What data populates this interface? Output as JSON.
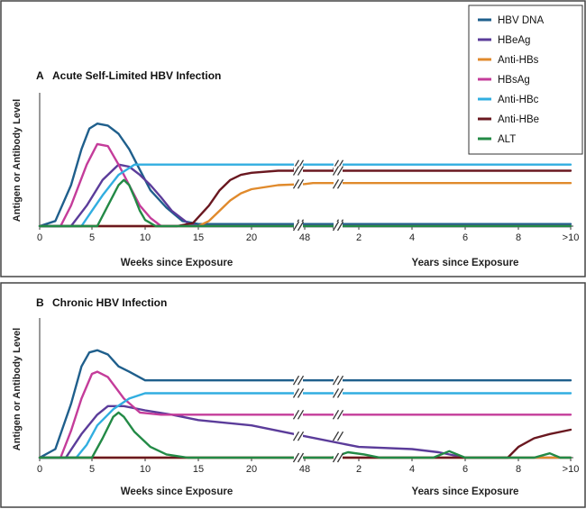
{
  "legend": [
    {
      "name": "HBV DNA",
      "color": "#1f5f8c"
    },
    {
      "name": "HBeAg",
      "color": "#5b3c9a"
    },
    {
      "name": "Anti-HBs",
      "color": "#e08a2c"
    },
    {
      "name": "HBsAg",
      "color": "#c43c9a"
    },
    {
      "name": "Anti-HBc",
      "color": "#31aee0"
    },
    {
      "name": "Anti-HBe",
      "color": "#6a1820"
    },
    {
      "name": "ALT",
      "color": "#238a46"
    }
  ],
  "chart_data": [
    {
      "type": "line",
      "title": "Acute Self-Limited HBV Infection",
      "panel_letter": "A",
      "ylabel": "Antigen or Antibody Level",
      "xlabel_weeks": "Weeks since Exposure",
      "xlabel_years": "Years since Exposure",
      "x_ticks": [
        "0",
        "5",
        "10",
        "15",
        "20",
        "48",
        "2",
        "4",
        "6",
        "8",
        ">10"
      ],
      "axis_breaks": [
        "between 20 weeks and 48 weeks",
        "between 48 weeks and 2 years"
      ],
      "x_note": "x positions are in tick-index units: 0 = 0 weeks, 1 = 5 wk, 2 = 10 wk, 3 = 15 wk, 4 = 20 wk, 5 = 48 wk, 6 = 2 yr, 7 = 4 yr, 8 = 6 yr, 9 = 8 yr, 10 = >10 yr",
      "ylim": [
        0,
        130
      ],
      "series": [
        {
          "name": "HBV DNA",
          "points": [
            [
              0,
              0
            ],
            [
              0.3,
              5
            ],
            [
              0.6,
              40
            ],
            [
              0.8,
              75
            ],
            [
              0.95,
              95
            ],
            [
              1.1,
              100
            ],
            [
              1.3,
              98
            ],
            [
              1.5,
              90
            ],
            [
              1.7,
              75
            ],
            [
              1.9,
              55
            ],
            [
              2.1,
              35
            ],
            [
              2.4,
              18
            ],
            [
              2.7,
              5
            ],
            [
              3,
              2
            ],
            [
              5,
              2
            ],
            [
              6,
              2
            ],
            [
              10,
              2
            ]
          ]
        },
        {
          "name": "HBeAg",
          "points": [
            [
              0,
              0
            ],
            [
              0.6,
              0
            ],
            [
              0.9,
              20
            ],
            [
              1.2,
              45
            ],
            [
              1.5,
              60
            ],
            [
              1.7,
              58
            ],
            [
              1.9,
              50
            ],
            [
              2.1,
              40
            ],
            [
              2.3,
              28
            ],
            [
              2.5,
              15
            ],
            [
              2.8,
              3
            ],
            [
              3,
              0
            ],
            [
              5,
              0
            ],
            [
              6,
              0
            ],
            [
              10,
              0
            ]
          ]
        },
        {
          "name": "Anti-HBs",
          "points": [
            [
              0,
              0
            ],
            [
              2,
              0
            ],
            [
              3,
              0
            ],
            [
              3.2,
              5
            ],
            [
              3.4,
              15
            ],
            [
              3.6,
              25
            ],
            [
              3.8,
              32
            ],
            [
              4,
              36
            ],
            [
              4.5,
              40
            ],
            [
              5,
              41
            ],
            [
              5.15,
              42
            ],
            [
              6,
              42
            ],
            [
              10,
              42
            ]
          ]
        },
        {
          "name": "HBsAg",
          "points": [
            [
              0,
              0
            ],
            [
              0.4,
              0
            ],
            [
              0.6,
              20
            ],
            [
              0.9,
              60
            ],
            [
              1.1,
              80
            ],
            [
              1.3,
              78
            ],
            [
              1.5,
              60
            ],
            [
              1.7,
              40
            ],
            [
              1.9,
              20
            ],
            [
              2.1,
              8
            ],
            [
              2.3,
              0
            ],
            [
              5,
              0
            ],
            [
              10,
              0
            ]
          ]
        },
        {
          "name": "Anti-HBc",
          "points": [
            [
              0,
              0
            ],
            [
              0.8,
              0
            ],
            [
              1,
              15
            ],
            [
              1.2,
              30
            ],
            [
              1.5,
              50
            ],
            [
              1.8,
              60
            ],
            [
              2,
              60
            ],
            [
              5,
              60
            ],
            [
              6,
              60
            ],
            [
              10,
              60
            ]
          ]
        },
        {
          "name": "Anti-HBe",
          "points": [
            [
              0,
              0
            ],
            [
              2.6,
              0
            ],
            [
              2.9,
              3
            ],
            [
              3.2,
              20
            ],
            [
              3.4,
              35
            ],
            [
              3.6,
              45
            ],
            [
              3.8,
              50
            ],
            [
              4,
              52
            ],
            [
              4.5,
              54
            ],
            [
              5,
              54
            ],
            [
              6,
              54
            ],
            [
              10,
              54
            ]
          ]
        },
        {
          "name": "ALT",
          "points": [
            [
              0,
              0
            ],
            [
              1.1,
              0
            ],
            [
              1.3,
              20
            ],
            [
              1.5,
              40
            ],
            [
              1.6,
              45
            ],
            [
              1.7,
              40
            ],
            [
              1.8,
              28
            ],
            [
              1.9,
              15
            ],
            [
              2.0,
              6
            ],
            [
              2.2,
              0
            ],
            [
              10,
              0
            ]
          ]
        }
      ]
    },
    {
      "type": "line",
      "title": "Chronic HBV Infection",
      "panel_letter": "B",
      "ylabel": "Antigen or Antibody Level",
      "xlabel_weeks": "Weeks since Exposure",
      "xlabel_years": "Years since Exposure",
      "x_ticks": [
        "0",
        "5",
        "10",
        "15",
        "20",
        "48",
        "2",
        "4",
        "6",
        "8",
        ">10"
      ],
      "axis_breaks": [
        "between 20 weeks and 48 weeks",
        "between 48 weeks and 2 years"
      ],
      "x_note": "x positions are in tick-index units: 0 = 0 weeks, 1 = 5 wk, 2 = 10 wk, 3 = 15 wk, 4 = 20 wk, 5 = 48 wk, 6 = 2 yr, 7 = 4 yr, 8 = 6 yr, 9 = 8 yr, 10 = >10 yr",
      "ylim": [
        0,
        130
      ],
      "series": [
        {
          "name": "HBV DNA",
          "points": [
            [
              0,
              0
            ],
            [
              0.3,
              8
            ],
            [
              0.6,
              50
            ],
            [
              0.8,
              85
            ],
            [
              0.95,
              98
            ],
            [
              1.1,
              100
            ],
            [
              1.3,
              96
            ],
            [
              1.5,
              85
            ],
            [
              1.7,
              80
            ],
            [
              2,
              72
            ],
            [
              3,
              72
            ],
            [
              5,
              72
            ],
            [
              6,
              72
            ],
            [
              10,
              72
            ]
          ]
        },
        {
          "name": "HBeAg",
          "points": [
            [
              0,
              0
            ],
            [
              0.5,
              0
            ],
            [
              0.8,
              22
            ],
            [
              1.1,
              40
            ],
            [
              1.3,
              48
            ],
            [
              1.6,
              48
            ],
            [
              2,
              44
            ],
            [
              2.5,
              40
            ],
            [
              3,
              35
            ],
            [
              4,
              30
            ],
            [
              5,
              20
            ],
            [
              6,
              10
            ],
            [
              7,
              8
            ],
            [
              7.5,
              5
            ],
            [
              8,
              0
            ],
            [
              10,
              0
            ]
          ]
        },
        {
          "name": "Anti-HBs",
          "points": [
            [
              0,
              0
            ],
            [
              10,
              0
            ]
          ]
        },
        {
          "name": "HBsAg",
          "points": [
            [
              0,
              0
            ],
            [
              0.4,
              0
            ],
            [
              0.6,
              25
            ],
            [
              0.8,
              55
            ],
            [
              1,
              78
            ],
            [
              1.1,
              80
            ],
            [
              1.3,
              75
            ],
            [
              1.6,
              55
            ],
            [
              1.9,
              42
            ],
            [
              2.3,
              40
            ],
            [
              3,
              40
            ],
            [
              5,
              40
            ],
            [
              10,
              40
            ]
          ]
        },
        {
          "name": "Anti-HBc",
          "points": [
            [
              0,
              0
            ],
            [
              0.7,
              0
            ],
            [
              0.9,
              12
            ],
            [
              1.1,
              30
            ],
            [
              1.4,
              45
            ],
            [
              1.7,
              55
            ],
            [
              2,
              60
            ],
            [
              3,
              60
            ],
            [
              5,
              60
            ],
            [
              6,
              60
            ],
            [
              10,
              60
            ]
          ]
        },
        {
          "name": "Anti-HBe",
          "points": [
            [
              0,
              0
            ],
            [
              8.8,
              0
            ],
            [
              9,
              10
            ],
            [
              9.3,
              18
            ],
            [
              9.6,
              22
            ],
            [
              10,
              26
            ]
          ]
        },
        {
          "name": "ALT",
          "points": [
            [
              0,
              0
            ],
            [
              1,
              0
            ],
            [
              1.2,
              18
            ],
            [
              1.4,
              38
            ],
            [
              1.5,
              42
            ],
            [
              1.6,
              38
            ],
            [
              1.8,
              24
            ],
            [
              2.1,
              10
            ],
            [
              2.4,
              3
            ],
            [
              2.8,
              0
            ],
            [
              5.5,
              0
            ],
            [
              5.8,
              5
            ],
            [
              6.1,
              3
            ],
            [
              6.4,
              0
            ],
            [
              7.4,
              0
            ],
            [
              7.7,
              6
            ],
            [
              8,
              0
            ],
            [
              9.3,
              0
            ],
            [
              9.6,
              4
            ],
            [
              9.8,
              0
            ],
            [
              10,
              0
            ]
          ]
        }
      ]
    }
  ]
}
